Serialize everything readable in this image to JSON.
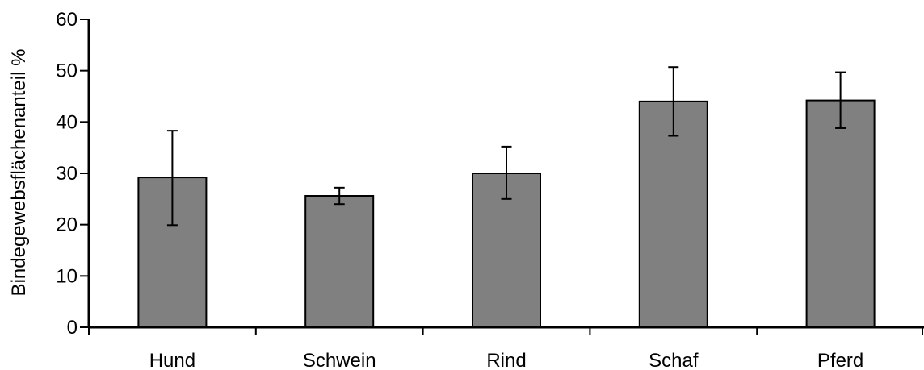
{
  "chart_data": {
    "type": "bar",
    "title": "",
    "xlabel": "",
    "ylabel": "Bindegewebsflächenanteil %",
    "ylim": [
      0,
      60
    ],
    "yticks": [
      0,
      10,
      20,
      30,
      40,
      50,
      60
    ],
    "categories": [
      "Hund",
      "Schwein",
      "Rind",
      "Schaf",
      "Pferd"
    ],
    "values": [
      29.2,
      25.6,
      30.0,
      44.0,
      44.2
    ],
    "error_upper": [
      38.3,
      27.2,
      35.2,
      50.7,
      49.7
    ],
    "error_lower": [
      19.9,
      24.0,
      25.0,
      37.3,
      38.8
    ],
    "grid": false,
    "legend": "none",
    "colors": {
      "bar_fill": "#808080",
      "bar_stroke": "#000000",
      "axis": "#000000"
    }
  }
}
